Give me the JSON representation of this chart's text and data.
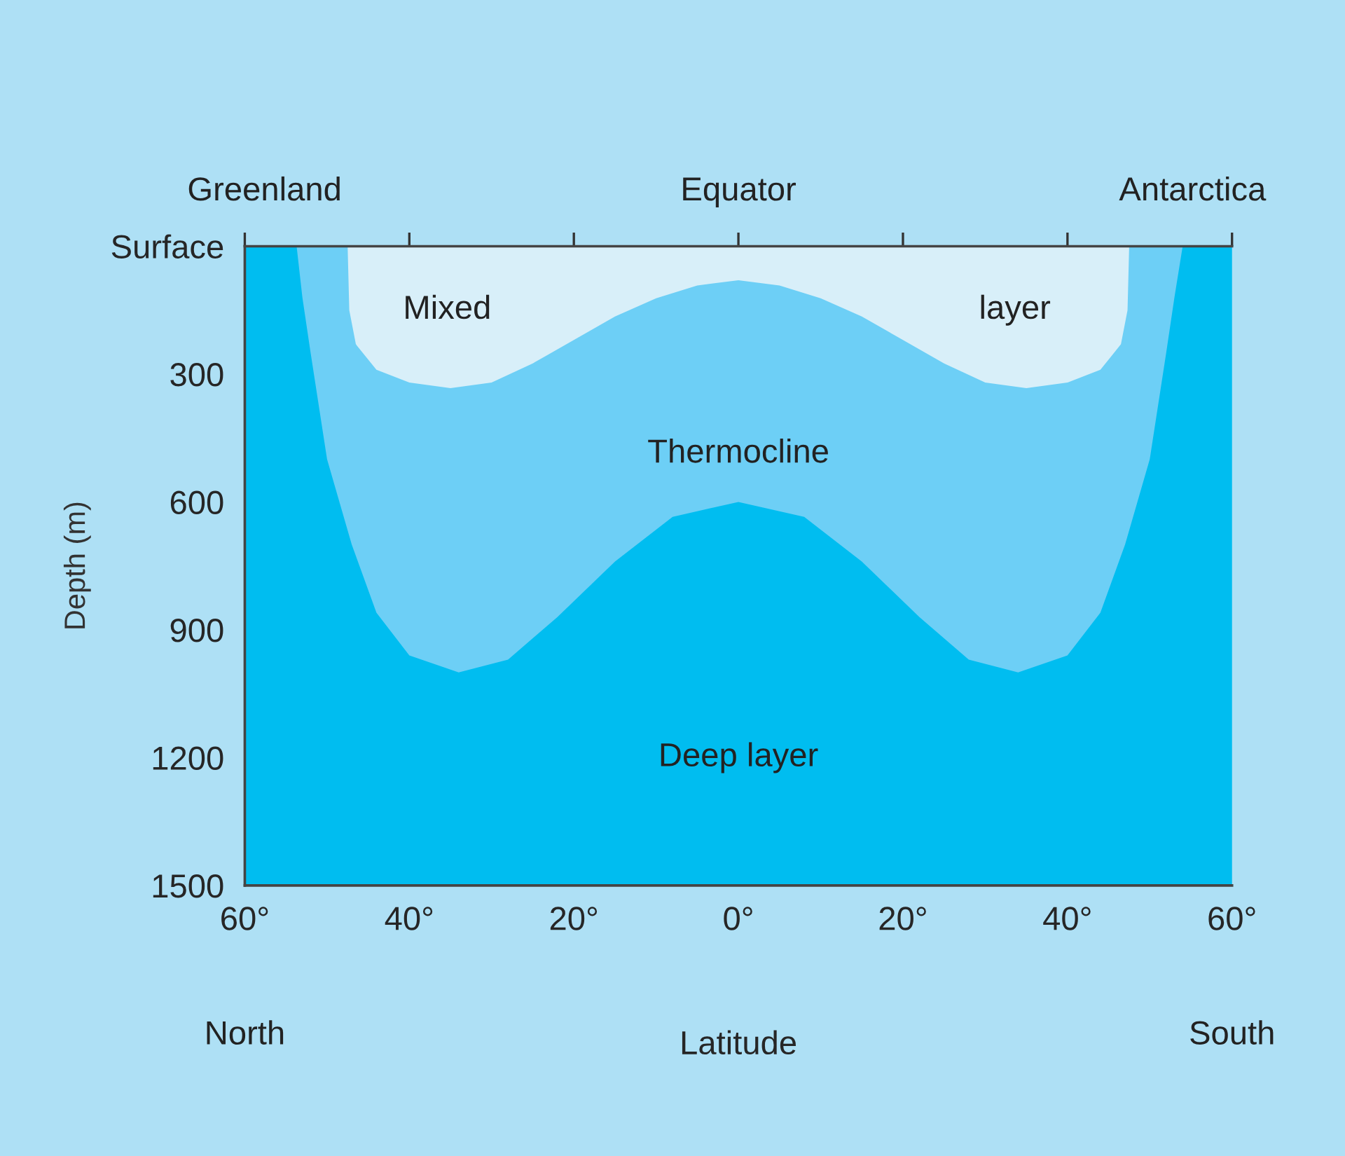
{
  "chart_data": {
    "type": "area",
    "xlabel": "Latitude",
    "ylabel": "Depth (m)",
    "xlim": [
      -60,
      60
    ],
    "ylim": [
      1500,
      0
    ],
    "xticks": [
      {
        "value": -60,
        "label": "60°"
      },
      {
        "value": -40,
        "label": "40°"
      },
      {
        "value": -20,
        "label": "20°"
      },
      {
        "value": 0,
        "label": "0°"
      },
      {
        "value": 20,
        "label": "20°"
      },
      {
        "value": 40,
        "label": "40°"
      },
      {
        "value": 60,
        "label": "60°"
      }
    ],
    "yticks": [
      {
        "value": 0,
        "label": "Surface"
      },
      300,
      600,
      900,
      1200,
      1500
    ],
    "grid": false,
    "legend": false,
    "series": [
      {
        "color": "#6dcff6",
        "x": [
          -53.7,
          -53,
          -52,
          -50,
          -47,
          -44,
          -40,
          -34,
          -28,
          -22,
          -15,
          -8,
          0,
          8,
          15,
          22,
          28,
          34,
          40,
          44,
          47,
          50,
          52,
          53,
          54
        ],
        "values": [
          0,
          120,
          250,
          500,
          700,
          860,
          960,
          1000,
          970,
          870,
          740,
          635,
          600,
          635,
          740,
          870,
          970,
          1000,
          960,
          860,
          700,
          500,
          250,
          120,
          0
        ]
      },
      {
        "color": "#d8eff9",
        "x": [
          -47.5,
          -47.3,
          -46.5,
          -44,
          -40,
          -35,
          -30,
          -25,
          -20,
          -15,
          -10,
          -5,
          0,
          5,
          10,
          15,
          20,
          25,
          30,
          35,
          40,
          44,
          46.5,
          47.3,
          47.5
        ],
        "values": [
          0,
          150,
          230,
          290,
          320,
          333,
          320,
          275,
          220,
          165,
          122,
          92,
          80,
          92,
          122,
          165,
          220,
          275,
          320,
          333,
          320,
          290,
          230,
          150,
          0
        ]
      }
    ],
    "annotations": [
      "Greenland",
      "Equator",
      "Antarctica",
      "Mixed",
      "layer",
      "Thermocline",
      "Deep layer",
      "North",
      "South"
    ]
  }
}
